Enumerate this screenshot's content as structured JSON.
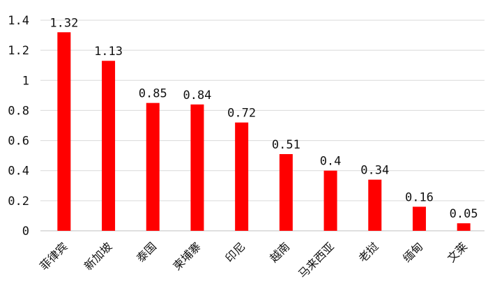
{
  "chart_data": {
    "type": "bar",
    "categories": [
      "菲律宾",
      "新加坡",
      "泰国",
      "柬埔寨",
      "印尼",
      "越南",
      "马来西亚",
      "老挝",
      "缅甸",
      "文莱"
    ],
    "values": [
      1.32,
      1.13,
      0.85,
      0.84,
      0.72,
      0.51,
      0.4,
      0.34,
      0.16,
      0.05
    ],
    "value_labels": [
      "1.32",
      "1.13",
      "0.85",
      "0.84",
      "0.72",
      "0.51",
      "0.4",
      "0.34",
      "0.16",
      "0.05"
    ],
    "ylim": [
      0,
      1.4
    ],
    "yticks": [
      0,
      0.2,
      0.4,
      0.6,
      0.8,
      1,
      1.2,
      1.4
    ],
    "ytick_labels": [
      "0",
      "0.2",
      "0.4",
      "0.6",
      "0.8",
      "1",
      "1.2",
      "1.4"
    ],
    "title": "",
    "xlabel": "",
    "ylabel": "",
    "grid": true,
    "bar_color": "#ff0000"
  }
}
